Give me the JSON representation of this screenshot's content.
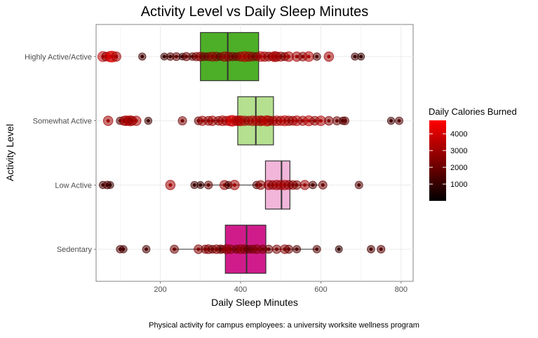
{
  "chart_data": {
    "type": "boxplot",
    "title": "Activity Level vs Daily Sleep Minutes",
    "xlabel": "Daily Sleep Minutes",
    "ylabel": "Activity Level",
    "caption": "Physical activity for campus employees: a university worksite wellness program",
    "xlim": [
      40,
      830
    ],
    "x_ticks": [
      200,
      400,
      600,
      800
    ],
    "grid": true,
    "legend": {
      "title": "Daily Calories Burned",
      "position": "right",
      "ticks": [
        1000,
        2000,
        3000,
        4000
      ],
      "range": [
        0,
        4800
      ],
      "color_low": "#000000",
      "color_high": "#ff0000"
    },
    "categories": [
      "Highly Active/Active",
      "Somewhat Active",
      "Low Active",
      "Sedentary"
    ],
    "series": [
      {
        "name": "Highly Active/Active",
        "box_color": "#4daf27",
        "min": 205,
        "q1": 300,
        "median": 368,
        "q3": 445,
        "max": 525,
        "points": [
          [
            57,
            3500
          ],
          [
            65,
            2500
          ],
          [
            75,
            3800
          ],
          [
            80,
            4200
          ],
          [
            90,
            3000
          ],
          [
            155,
            1200
          ],
          [
            210,
            1100
          ],
          [
            225,
            1400
          ],
          [
            240,
            1800
          ],
          [
            255,
            900
          ],
          [
            265,
            2000
          ],
          [
            280,
            1500
          ],
          [
            290,
            2200
          ],
          [
            300,
            2600
          ],
          [
            310,
            1900
          ],
          [
            320,
            2100
          ],
          [
            330,
            2800
          ],
          [
            340,
            2400
          ],
          [
            350,
            1700
          ],
          [
            360,
            3000
          ],
          [
            370,
            2600
          ],
          [
            380,
            2200
          ],
          [
            390,
            1900
          ],
          [
            400,
            2800
          ],
          [
            410,
            3400
          ],
          [
            420,
            3000
          ],
          [
            430,
            2500
          ],
          [
            440,
            2100
          ],
          [
            450,
            3300
          ],
          [
            460,
            3100
          ],
          [
            470,
            2700
          ],
          [
            480,
            2300
          ],
          [
            485,
            3600
          ],
          [
            490,
            2900
          ],
          [
            500,
            2800
          ],
          [
            510,
            2000
          ],
          [
            520,
            3200
          ],
          [
            540,
            3000
          ],
          [
            555,
            2500
          ],
          [
            570,
            3300
          ],
          [
            590,
            1500
          ],
          [
            620,
            3000
          ],
          [
            685,
            1200
          ],
          [
            700,
            1000
          ]
        ]
      },
      {
        "name": "Somewhat Active",
        "box_color": "#b4e08f",
        "min": 300,
        "q1": 393,
        "median": 438,
        "q3": 482,
        "max": 605,
        "points": [
          [
            70,
            3000
          ],
          [
            100,
            1500
          ],
          [
            110,
            2800
          ],
          [
            115,
            3300
          ],
          [
            120,
            2200
          ],
          [
            125,
            3600
          ],
          [
            130,
            2600
          ],
          [
            140,
            3100
          ],
          [
            170,
            1200
          ],
          [
            255,
            2200
          ],
          [
            295,
            1800
          ],
          [
            305,
            2900
          ],
          [
            320,
            2600
          ],
          [
            330,
            3000
          ],
          [
            345,
            2400
          ],
          [
            355,
            3300
          ],
          [
            365,
            2800
          ],
          [
            375,
            3600
          ],
          [
            380,
            4000
          ],
          [
            390,
            3200
          ],
          [
            395,
            2900
          ],
          [
            400,
            3500
          ],
          [
            410,
            3100
          ],
          [
            420,
            2700
          ],
          [
            430,
            3300
          ],
          [
            440,
            3000
          ],
          [
            450,
            3400
          ],
          [
            455,
            2600
          ],
          [
            465,
            3800
          ],
          [
            470,
            3100
          ],
          [
            480,
            2800
          ],
          [
            490,
            3200
          ],
          [
            500,
            2900
          ],
          [
            510,
            3500
          ],
          [
            520,
            3000
          ],
          [
            530,
            2700
          ],
          [
            540,
            3300
          ],
          [
            555,
            2900
          ],
          [
            570,
            3400
          ],
          [
            585,
            2600
          ],
          [
            600,
            3200
          ],
          [
            620,
            2400
          ],
          [
            640,
            2000
          ],
          [
            655,
            1500
          ],
          [
            660,
            1800
          ],
          [
            775,
            1200
          ],
          [
            795,
            1500
          ]
        ]
      },
      {
        "name": "Low Active",
        "box_color": "#f1b6da",
        "min": 300,
        "q1": 462,
        "median": 502,
        "q3": 523,
        "max": 595,
        "points": [
          [
            57,
            1300
          ],
          [
            68,
            1600
          ],
          [
            75,
            1100
          ],
          [
            225,
            3000
          ],
          [
            285,
            1200
          ],
          [
            300,
            1000
          ],
          [
            320,
            1800
          ],
          [
            360,
            2800
          ],
          [
            370,
            1200
          ],
          [
            385,
            3000
          ],
          [
            440,
            1500
          ],
          [
            450,
            2600
          ],
          [
            470,
            2900
          ],
          [
            480,
            2500
          ],
          [
            490,
            3000
          ],
          [
            500,
            2800
          ],
          [
            510,
            3100
          ],
          [
            520,
            2700
          ],
          [
            530,
            2500
          ],
          [
            540,
            2300
          ],
          [
            560,
            2900
          ],
          [
            580,
            1500
          ],
          [
            605,
            2000
          ],
          [
            695,
            1500
          ]
        ]
      },
      {
        "name": "Sedentary",
        "box_color": "#d01c8b",
        "min": 235,
        "q1": 362,
        "median": 415,
        "q3": 463,
        "max": 585,
        "points": [
          [
            100,
            1500
          ],
          [
            108,
            1300
          ],
          [
            165,
            1400
          ],
          [
            235,
            2000
          ],
          [
            295,
            2400
          ],
          [
            312,
            2100
          ],
          [
            320,
            2600
          ],
          [
            330,
            1800
          ],
          [
            340,
            2500
          ],
          [
            350,
            2300
          ],
          [
            355,
            1500
          ],
          [
            365,
            2900
          ],
          [
            375,
            2500
          ],
          [
            390,
            1900
          ],
          [
            400,
            2700
          ],
          [
            410,
            2300
          ],
          [
            420,
            1800
          ],
          [
            430,
            2100
          ],
          [
            440,
            2400
          ],
          [
            455,
            2200
          ],
          [
            470,
            2000
          ],
          [
            490,
            2200
          ],
          [
            510,
            2500
          ],
          [
            520,
            2000
          ],
          [
            540,
            1500
          ],
          [
            590,
            1500
          ],
          [
            645,
            1000
          ],
          [
            725,
            1400
          ],
          [
            750,
            1600
          ]
        ]
      }
    ]
  }
}
